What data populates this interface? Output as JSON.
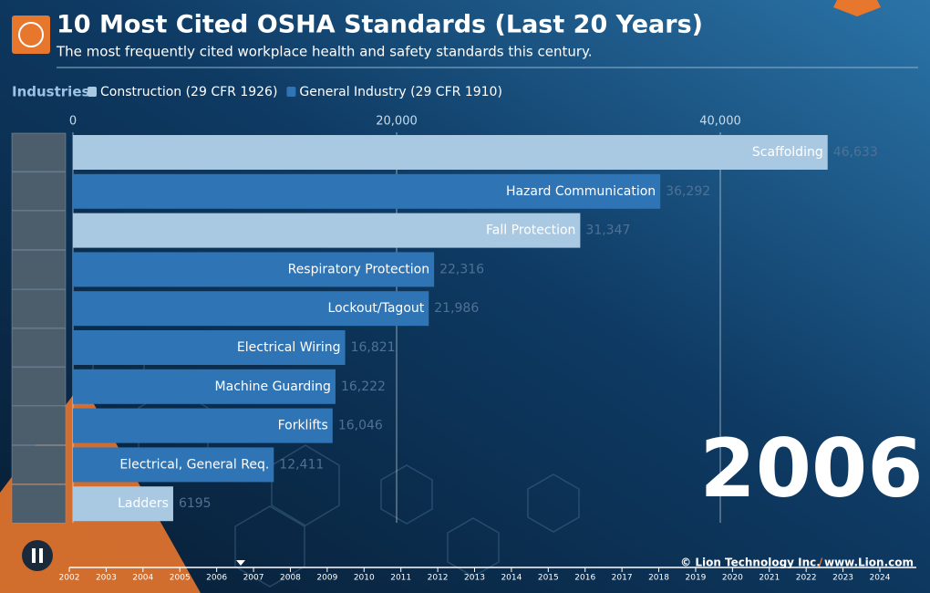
{
  "chart_data": {
    "type": "bar_race",
    "title": "10 Most Cited OSHA Standards (Last 20 Years)",
    "subtitle": "The most frequently cited workplace health and safety standards this century.",
    "legend_title": "Industries",
    "categories": [
      "Scaffolding",
      "Hazard Communication",
      "Fall Protection",
      "Respiratory Protection",
      "Lockout/Tagout",
      "Electrical Wiring",
      "Machine Guarding",
      "Forklifts",
      "Electrical, General Req.",
      "Ladders"
    ],
    "series": [
      {
        "name": "Construction (29 CFR 1926)",
        "color": "#a9c8e2",
        "values": [
          46633,
          null,
          31347,
          null,
          null,
          null,
          null,
          null,
          null,
          6195
        ],
        "value_labels": [
          "46,633",
          null,
          "31,347",
          null,
          null,
          null,
          null,
          null,
          null,
          "6195"
        ]
      },
      {
        "name": "General Industry (29 CFR 1910)",
        "color": "#2f74b5",
        "values": [
          null,
          36292,
          null,
          22316,
          21986,
          16821,
          16222,
          16046,
          12411,
          null
        ],
        "value_labels": [
          null,
          "36,292",
          null,
          "22,316",
          "21,986",
          "16,821",
          "16,222",
          "16,046",
          "12,411",
          null
        ]
      }
    ],
    "xlim": [
      0,
      52000
    ],
    "xticks": [
      0,
      {
        "value": 20000,
        "label": "20,000"
      },
      {
        "value": 40000,
        "label": "40,000"
      }
    ],
    "grid": true,
    "year": 2006,
    "timeline_years": [
      2002,
      2003,
      2004,
      2005,
      2006,
      2007,
      2008,
      2009,
      2010,
      2011,
      2012,
      2013,
      2014,
      2015,
      2016,
      2017,
      2018,
      2019,
      2020,
      2021,
      2022,
      2023,
      2024
    ],
    "credit": "© Lion Technology Inc.",
    "credit_separator": "/",
    "credit_url": "www.Lion.com"
  }
}
